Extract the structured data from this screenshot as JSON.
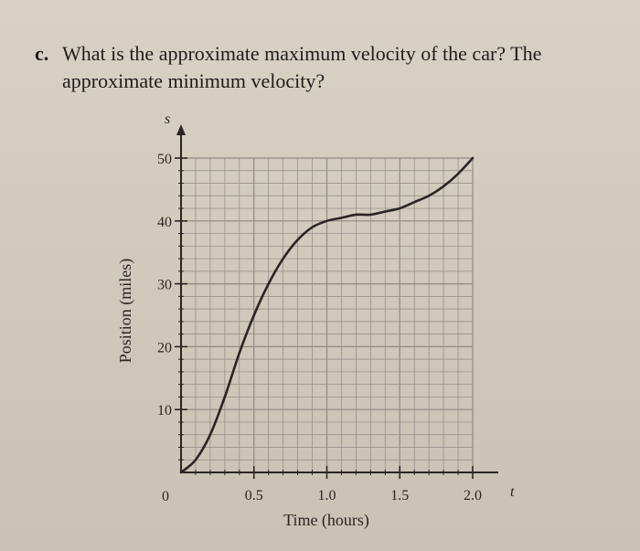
{
  "question": {
    "letter": "c.",
    "line1": "What is the approximate maximum velocity of the car? The",
    "line2": "approximate minimum velocity?"
  },
  "chart_data": {
    "type": "line",
    "xlabel": "Time (hours)",
    "ylabel": "Position (miles)",
    "x_axis_symbol": "t",
    "y_axis_symbol": "s",
    "origin_label": "0",
    "xlim": [
      0,
      2.0
    ],
    "ylim": [
      0,
      50
    ],
    "x_ticks": [
      0.5,
      1.0,
      1.5,
      2.0
    ],
    "x_tick_labels": [
      "0.5",
      "1.0",
      "1.5",
      "2.0"
    ],
    "y_ticks": [
      10,
      20,
      30,
      40,
      50
    ],
    "y_tick_labels": [
      "10",
      "20",
      "30",
      "40",
      "50"
    ],
    "grid": true,
    "series": [
      {
        "x": [
          0,
          0.1,
          0.2,
          0.3,
          0.4,
          0.5,
          0.6,
          0.7,
          0.8,
          0.9,
          1.0,
          1.1,
          1.2,
          1.3,
          1.4,
          1.5,
          1.6,
          1.7,
          1.8,
          1.9,
          2.0
        ],
        "y": [
          0,
          2,
          6,
          12,
          19,
          25,
          30,
          34,
          37,
          39,
          40,
          40.5,
          41,
          41,
          41.5,
          42,
          43,
          44,
          45.5,
          47.5,
          50
        ]
      }
    ]
  }
}
